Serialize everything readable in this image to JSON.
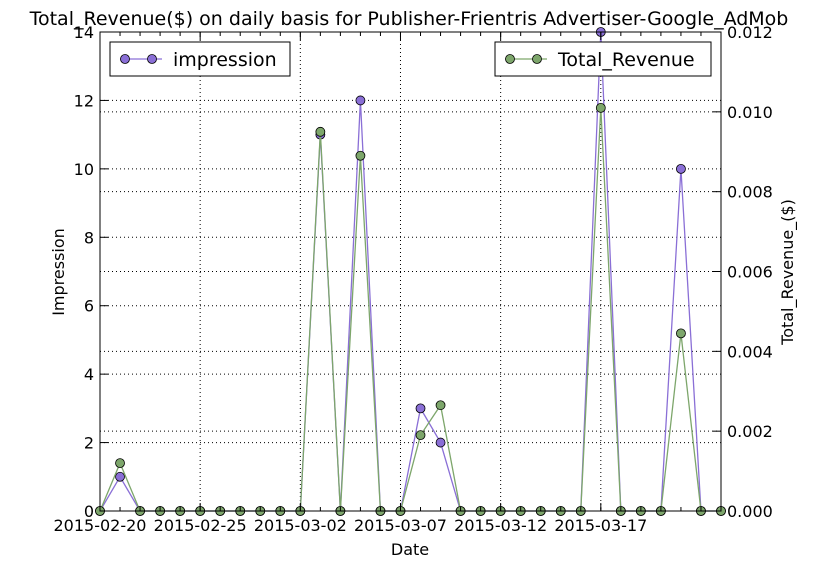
{
  "chart_data": {
    "type": "line",
    "title": "Total_Revenue($) on daily basis for Publisher-Frientris Advertiser-Google_AdMob",
    "xlabel": "Date",
    "ylabel_left": "Impression",
    "ylabel_right": "Total_Revenue_($)",
    "x": [
      "2015-02-20",
      "2015-02-21",
      "2015-02-22",
      "2015-02-23",
      "2015-02-24",
      "2015-02-25",
      "2015-02-26",
      "2015-02-27",
      "2015-02-28",
      "2015-03-01",
      "2015-03-02",
      "2015-03-03",
      "2015-03-04",
      "2015-03-05",
      "2015-03-06",
      "2015-03-07",
      "2015-03-08",
      "2015-03-09",
      "2015-03-10",
      "2015-03-11",
      "2015-03-12",
      "2015-03-13",
      "2015-03-14",
      "2015-03-15",
      "2015-03-16",
      "2015-03-17",
      "2015-03-18",
      "2015-03-19",
      "2015-03-20",
      "2015-03-21",
      "2015-03-22",
      "2015-03-23"
    ],
    "x_tick_labels": [
      "2015-02-20",
      "2015-02-25",
      "2015-03-02",
      "2015-03-07",
      "2015-03-12",
      "2015-03-17"
    ],
    "ylim_left": [
      0,
      14
    ],
    "ylim_right": [
      0,
      0.012
    ],
    "y_ticks_left": [
      "0",
      "2",
      "4",
      "6",
      "8",
      "10",
      "12",
      "14"
    ],
    "y_ticks_right": [
      "0.000",
      "0.002",
      "0.004",
      "0.006",
      "0.008",
      "0.010",
      "0.012"
    ],
    "grid": true,
    "series": [
      {
        "name": "impression",
        "axis": "left",
        "color": "#8a6fd6",
        "values": [
          0,
          1,
          0,
          0,
          0,
          0,
          0,
          0,
          0,
          0,
          0,
          11,
          0,
          12,
          0,
          0,
          3,
          2,
          0,
          0,
          0,
          0,
          0,
          0,
          0,
          14,
          0,
          0,
          0,
          10,
          0,
          0
        ]
      },
      {
        "name": "Total_Revenue",
        "axis": "right",
        "color": "#7da66b",
        "values": [
          0,
          0.0012,
          0,
          0,
          0,
          0,
          0,
          0,
          0,
          0,
          0,
          0.0095,
          0,
          0.0089,
          0,
          0,
          0.0019,
          0.00265,
          0,
          0,
          0,
          0,
          0,
          0,
          0,
          0.0101,
          0,
          0,
          0,
          0.00445,
          0,
          0
        ]
      }
    ],
    "legend": [
      {
        "series": "impression",
        "position": "top-left"
      },
      {
        "series": "Total_Revenue",
        "position": "top-right"
      }
    ]
  }
}
